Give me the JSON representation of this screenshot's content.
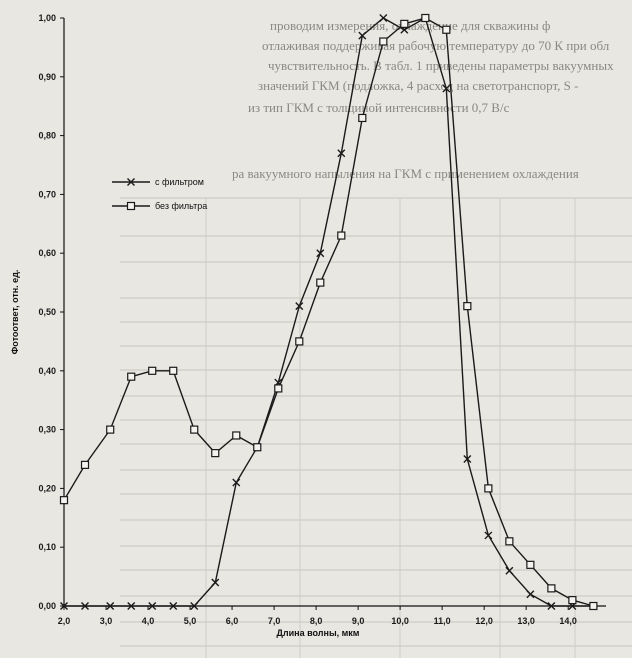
{
  "background_text": [
    "проводим измерения, охлаждение для скважины ф",
    "отлаживая поддерживая рабочую температуру до 70 К при обл",
    "чувствительность. В табл. 1 приведены параметры вакуумных",
    "значений ГКМ (подложка, 4 расход на светотранспорт, S -",
    "из тип ГКМ с толщиной интенсивности 0,7 В/с",
    "ра вакуумного напыления на ГКМ с применением охлаждения"
  ],
  "chart_data": {
    "type": "line",
    "title": "",
    "xlabel": "Длина волны, мкм",
    "ylabel": "Фотоответ, отн. ед.",
    "xlim": [
      2.0,
      14.9
    ],
    "ylim": [
      0.0,
      1.0
    ],
    "x_ticks": [
      "2,0",
      "3,0",
      "4,0",
      "5,0",
      "6,0",
      "7,0",
      "8,0",
      "9,0",
      "10,0",
      "11,0",
      "12,0",
      "13,0",
      "14,0"
    ],
    "y_ticks": [
      "0,00",
      "0,10",
      "0,20",
      "0,30",
      "0,40",
      "0,50",
      "0,60",
      "0,70",
      "0,80",
      "0,90",
      "1,00"
    ],
    "legend_position": "top-left",
    "series": [
      {
        "name": "с фильтром",
        "marker": "x",
        "color": "#1a1a1a",
        "x": [
          2.0,
          2.5,
          3.1,
          3.6,
          4.1,
          4.6,
          5.1,
          5.6,
          6.1,
          6.6,
          7.1,
          7.6,
          8.1,
          8.6,
          9.1,
          9.6,
          10.1,
          10.6,
          11.1,
          11.6,
          12.1,
          12.6,
          13.1,
          13.6,
          14.1,
          14.6
        ],
        "y": [
          0.0,
          0.0,
          0.0,
          0.0,
          0.0,
          0.0,
          0.0,
          0.04,
          0.21,
          0.27,
          0.38,
          0.51,
          0.6,
          0.77,
          0.97,
          1.0,
          0.98,
          1.0,
          0.88,
          0.25,
          0.12,
          0.06,
          0.02,
          0.0,
          0.0,
          0.0
        ]
      },
      {
        "name": "без фильтра",
        "marker": "square",
        "color": "#1a1a1a",
        "x": [
          2.0,
          2.5,
          3.1,
          3.6,
          4.1,
          4.6,
          5.1,
          5.6,
          6.1,
          6.6,
          7.1,
          7.6,
          8.1,
          8.6,
          9.1,
          9.6,
          10.1,
          10.6,
          11.1,
          11.6,
          12.1,
          12.6,
          13.1,
          13.6,
          14.1,
          14.6
        ],
        "y": [
          0.18,
          0.24,
          0.3,
          0.39,
          0.4,
          0.4,
          0.3,
          0.26,
          0.29,
          0.27,
          0.37,
          0.45,
          0.55,
          0.63,
          0.83,
          0.96,
          0.99,
          1.0,
          0.98,
          0.51,
          0.2,
          0.11,
          0.07,
          0.03,
          0.01,
          0.0
        ]
      }
    ]
  }
}
